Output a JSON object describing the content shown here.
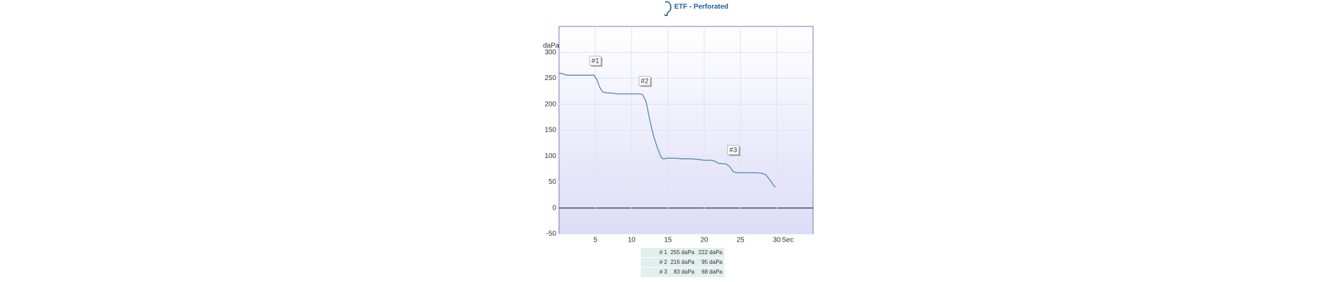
{
  "chart_data": {
    "type": "line",
    "title": "ETF - Perforated",
    "y_label": "daPa",
    "x_label": "Sec",
    "x": [
      0,
      0.5,
      1,
      2,
      3,
      4,
      4.8,
      5.2,
      5.6,
      6,
      6.5,
      7,
      7.5,
      8,
      9,
      10,
      11,
      11.5,
      12,
      12.5,
      13,
      13.5,
      14,
      14.3,
      15,
      16,
      17,
      18,
      19,
      20,
      21,
      21.5,
      22,
      23,
      23.5,
      24,
      24.5,
      25,
      26,
      27,
      28,
      28.5,
      29,
      29.5,
      29.8
    ],
    "values": [
      260,
      259,
      256,
      256,
      256,
      256,
      256,
      248,
      233,
      224,
      222,
      222,
      221,
      220,
      220,
      220,
      220,
      219,
      205,
      170,
      140,
      118,
      100,
      95,
      96,
      96,
      95,
      95,
      94,
      92,
      92,
      90,
      86,
      85,
      80,
      70,
      68,
      68,
      68,
      68,
      67,
      64,
      55,
      45,
      40
    ],
    "color": "#5b8fad",
    "xlim": [
      0,
      35
    ],
    "ylim": [
      -50,
      350
    ],
    "xticks": [
      5,
      10,
      15,
      20,
      25,
      30
    ],
    "yticks": [
      -50,
      0,
      50,
      100,
      150,
      200,
      250,
      300
    ],
    "grid": true,
    "annotations": [
      {
        "text": "#1",
        "x": 5,
        "y": 282
      },
      {
        "text": "#2",
        "x": 11.8,
        "y": 243
      },
      {
        "text": "#3",
        "x": 24,
        "y": 110
      }
    ]
  },
  "table": {
    "rows": [
      [
        "# 1",
        "255 daPa",
        "222 daPa"
      ],
      [
        "# 2",
        "216 daPa",
        "95 daPa"
      ],
      [
        "# 3",
        "83 daPa",
        "68 daPa"
      ]
    ]
  }
}
